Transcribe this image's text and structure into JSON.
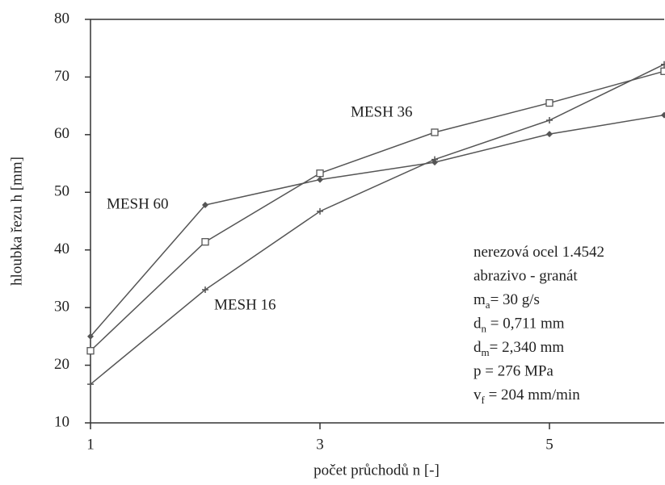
{
  "chart_data": {
    "type": "line",
    "xlabel": "počet průchodů n [-]",
    "ylabel": "hloubka řezu h [mm]",
    "x": [
      1,
      2,
      3,
      4,
      5,
      6
    ],
    "xlim": [
      1,
      6
    ],
    "xticks": [
      1,
      3,
      5
    ],
    "ylim": [
      10,
      80
    ],
    "yticks": [
      10,
      20,
      30,
      40,
      50,
      60,
      70,
      80
    ],
    "series": [
      {
        "name": "MESH 60",
        "color": "#555555",
        "marker": "diamond",
        "values": [
          25,
          47.8,
          52.2,
          55.2,
          60.1,
          63.4
        ]
      },
      {
        "name": "MESH 36",
        "color": "#555555",
        "marker": "square",
        "values": [
          22.5,
          41.4,
          53.3,
          60.4,
          65.5,
          71
        ]
      },
      {
        "name": "MESH 16",
        "color": "#555555",
        "marker": "plus",
        "values": [
          16.7,
          33.1,
          46.7,
          55.7,
          62.5,
          72.2
        ]
      }
    ],
    "notes": [
      [
        "nerezová ocel 1.4542"
      ],
      [
        "abrazivo - granát"
      ],
      [
        "m",
        "a",
        "= 30      g/s"
      ],
      [
        "d",
        "n",
        " = 0,711 mm"
      ],
      [
        "d",
        "m",
        "= 2,340 mm"
      ],
      [
        "p   = 276    MPa"
      ],
      [
        "v",
        "f",
        " = 204    mm/min"
      ]
    ]
  }
}
